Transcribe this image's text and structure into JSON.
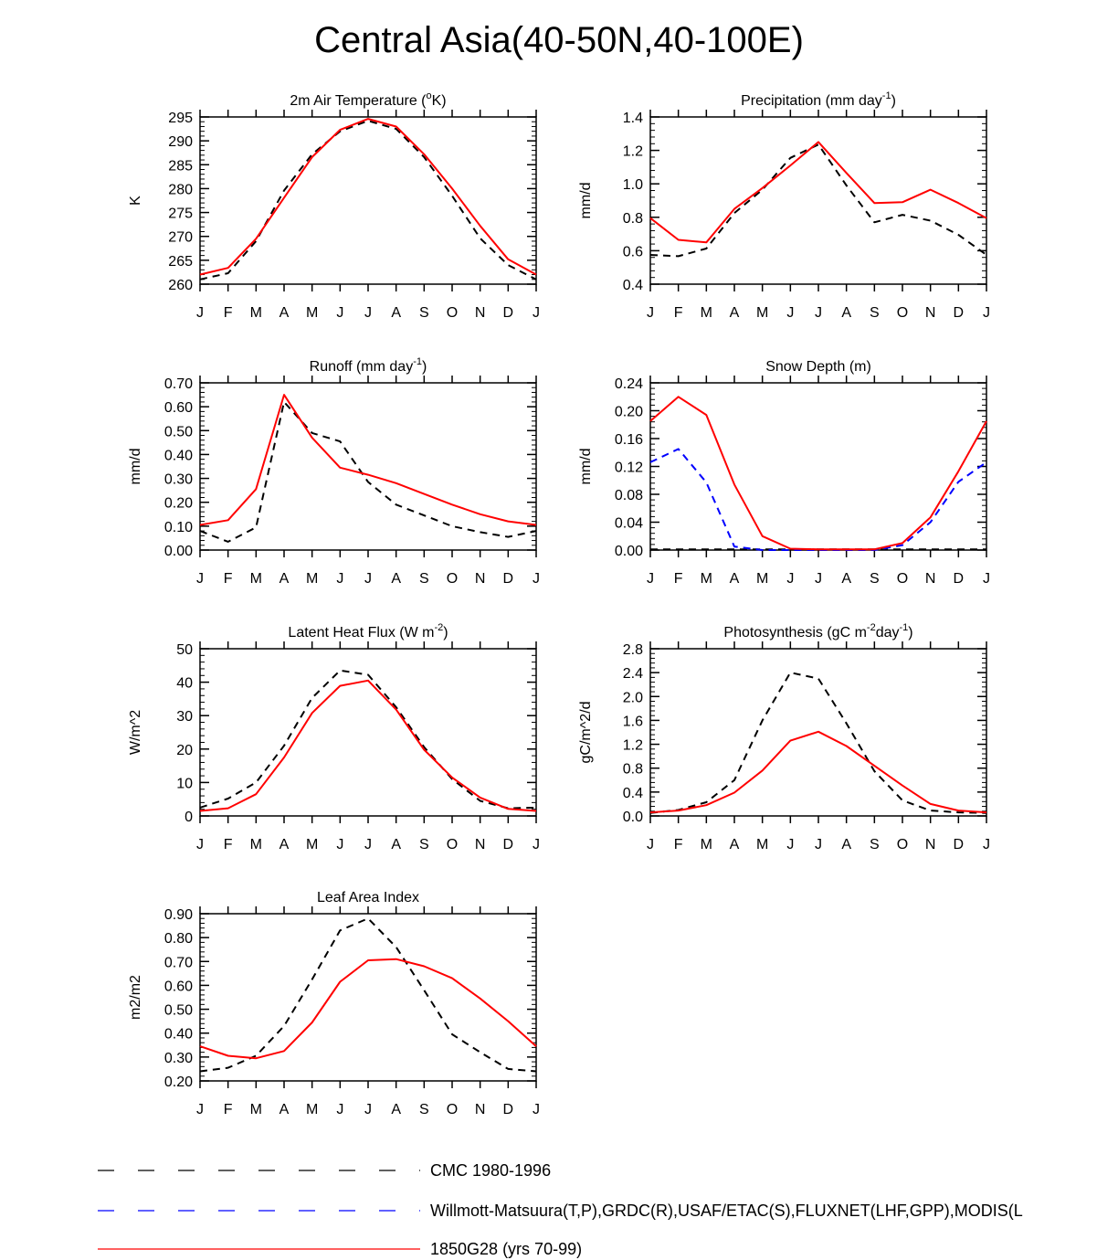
{
  "title": "Central Asia(40-50N,40-100E)",
  "months": [
    "J",
    "F",
    "M",
    "A",
    "M",
    "J",
    "J",
    "A",
    "S",
    "O",
    "N",
    "D",
    "J"
  ],
  "colors": {
    "cmc": "#000000",
    "obs": "#0000ff",
    "model": "#ff0000"
  },
  "legend": [
    {
      "label": "CMC 1980-1996",
      "style": "dash-black"
    },
    {
      "label": "Willmott-Matsuura(T,P),GRDC(R),USAF/ETAC(S),FLUXNET(LHF,GPP),MODIS(L",
      "style": "dash-blue"
    },
    {
      "label": "1850G28 (yrs 70-99)",
      "style": "solid-red"
    }
  ],
  "chart_data": [
    {
      "type": "line",
      "title": "2m Air Temperature (°K)",
      "title_parts": [
        "2m Air Temperature (",
        "o",
        "K)"
      ],
      "ylabel": "K",
      "ylim": [
        260,
        295
      ],
      "yticks": [
        "295",
        "290",
        "285",
        "280",
        "275",
        "270",
        "265",
        "260"
      ],
      "ytick_values": [
        295,
        290,
        285,
        280,
        275,
        270,
        265,
        260
      ],
      "minor_step": 1,
      "series": [
        {
          "name": "CMC 1980-1996",
          "style": "dash-black",
          "values": [
            261.0,
            262.3,
            269.0,
            279.6,
            287.2,
            292.0,
            294.2,
            292.5,
            286.6,
            278.5,
            269.6,
            264.0,
            261.0
          ]
        },
        {
          "name": "1850G28 (yrs 70-99)",
          "style": "solid-red",
          "values": [
            262.0,
            263.4,
            269.5,
            278.1,
            286.6,
            292.3,
            294.6,
            293.0,
            287.2,
            280.0,
            272.2,
            265.2,
            262.0
          ]
        }
      ]
    },
    {
      "type": "line",
      "title": "Precipitation (mm day-1)",
      "title_parts": [
        "Precipitation (mm day",
        "-1",
        ")"
      ],
      "ylabel": "mm/d",
      "ylim": [
        0.4,
        1.4
      ],
      "yticks": [
        "1.4",
        "1.2",
        "1.0",
        "0.8",
        "0.6",
        "0.4"
      ],
      "ytick_values": [
        1.4,
        1.2,
        1.0,
        0.8,
        0.6,
        0.4
      ],
      "minor_step": 0.04,
      "series": [
        {
          "name": "CMC 1980-1996",
          "style": "dash-black",
          "values": [
            0.575,
            0.567,
            0.613,
            0.825,
            0.965,
            1.155,
            1.235,
            0.99,
            0.77,
            0.815,
            0.78,
            0.695,
            0.575
          ]
        },
        {
          "name": "1850G28 (yrs 70-99)",
          "style": "solid-red",
          "values": [
            0.795,
            0.665,
            0.65,
            0.85,
            0.975,
            1.11,
            1.25,
            1.065,
            0.885,
            0.89,
            0.965,
            0.885,
            0.795
          ]
        }
      ]
    },
    {
      "type": "line",
      "title": "Runoff (mm day-1)",
      "title_parts": [
        "Runoff (mm day",
        "-1",
        ")"
      ],
      "ylabel": "mm/d",
      "ylim": [
        0.0,
        0.7
      ],
      "yticks": [
        "0.70",
        "0.60",
        "0.50",
        "0.40",
        "0.30",
        "0.20",
        "0.10",
        "0.00"
      ],
      "ytick_values": [
        0.7,
        0.6,
        0.5,
        0.4,
        0.3,
        0.2,
        0.1,
        0.0
      ],
      "minor_step": 0.02,
      "series": [
        {
          "name": "CMC 1980-1996",
          "style": "dash-black",
          "values": [
            0.08,
            0.035,
            0.095,
            0.62,
            0.49,
            0.455,
            0.285,
            0.19,
            0.145,
            0.1,
            0.075,
            0.055,
            0.08
          ]
        },
        {
          "name": "1850G28 (yrs 70-99)",
          "style": "solid-red",
          "values": [
            0.105,
            0.125,
            0.255,
            0.65,
            0.47,
            0.345,
            0.315,
            0.28,
            0.235,
            0.19,
            0.15,
            0.12,
            0.105
          ]
        }
      ]
    },
    {
      "type": "line",
      "title": "Snow Depth (m)",
      "title_parts": [
        "Snow Depth (m)"
      ],
      "ylabel": "mm/d",
      "ylim": [
        0.0,
        0.24
      ],
      "yticks": [
        "0.24",
        "0.20",
        "0.16",
        "0.12",
        "0.08",
        "0.04",
        "0.00"
      ],
      "ytick_values": [
        0.24,
        0.2,
        0.16,
        0.12,
        0.08,
        0.04,
        0.0
      ],
      "minor_step": 0.008,
      "series": [
        {
          "name": "CMC 1980-1996",
          "style": "dash-black",
          "values": [
            0.001,
            0.001,
            0.001,
            0.001,
            0.001,
            0.001,
            0.001,
            0.001,
            0.001,
            0.001,
            0.001,
            0.001,
            0.001
          ]
        },
        {
          "name": "Willmott-Matsuura(T,P),GRDC(R),USAF/ETAC(S),FLUXNET(LHF,GPP),MODIS(L",
          "style": "dash-blue",
          "values": [
            0.126,
            0.145,
            0.097,
            0.005,
            0.0,
            0.0,
            0.0,
            0.0,
            0.0,
            0.007,
            0.04,
            0.098,
            0.126
          ]
        },
        {
          "name": "1850G28 (yrs 70-99)",
          "style": "solid-red",
          "values": [
            0.185,
            0.22,
            0.194,
            0.094,
            0.02,
            0.002,
            0.001,
            0.001,
            0.001,
            0.01,
            0.047,
            0.113,
            0.185
          ]
        }
      ]
    },
    {
      "type": "line",
      "title": "Latent Heat Flux (W m-2)",
      "title_parts": [
        "Latent Heat Flux (W m",
        "-2",
        ")"
      ],
      "ylabel": "W/m^2",
      "ylim": [
        0,
        50
      ],
      "yticks": [
        "50",
        "40",
        "30",
        "20",
        "10",
        "0"
      ],
      "ytick_values": [
        50,
        40,
        30,
        20,
        10,
        0
      ],
      "minor_step": 2,
      "series": [
        {
          "name": "CMC 1980-1996",
          "style": "dash-black",
          "values": [
            2.5,
            5.2,
            10.0,
            21.0,
            35.3,
            43.5,
            42.2,
            32.5,
            20.6,
            11.0,
            4.5,
            2.3,
            2.5
          ]
        },
        {
          "name": "1850G28 (yrs 70-99)",
          "style": "solid-red",
          "values": [
            1.5,
            2.3,
            6.5,
            17.5,
            30.8,
            38.9,
            40.5,
            31.8,
            19.8,
            11.5,
            5.5,
            2.1,
            1.5
          ]
        }
      ]
    },
    {
      "type": "line",
      "title": "Photosynthesis (gC m-2day-1)",
      "title_parts": [
        "Photosynthesis (gC m",
        "-2",
        "day",
        "-1",
        ")"
      ],
      "ylabel": "gC/m^2/d",
      "ylim": [
        0.0,
        2.8
      ],
      "yticks": [
        "2.8",
        "2.4",
        "2.0",
        "1.6",
        "1.2",
        "0.8",
        "0.4",
        "0.0"
      ],
      "ytick_values": [
        2.8,
        2.4,
        2.0,
        1.6,
        1.2,
        0.8,
        0.4,
        0.0
      ],
      "minor_step": 0.08,
      "series": [
        {
          "name": "CMC 1980-1996",
          "style": "dash-black",
          "values": [
            0.05,
            0.1,
            0.23,
            0.6,
            1.6,
            2.4,
            2.3,
            1.55,
            0.75,
            0.26,
            0.09,
            0.06,
            0.05
          ]
        },
        {
          "name": "1850G28 (yrs 70-99)",
          "style": "solid-red",
          "values": [
            0.06,
            0.09,
            0.18,
            0.39,
            0.76,
            1.26,
            1.41,
            1.17,
            0.84,
            0.51,
            0.2,
            0.09,
            0.06
          ]
        }
      ]
    },
    {
      "type": "line",
      "title": "Leaf Area Index",
      "title_parts": [
        "Leaf Area Index"
      ],
      "ylabel": "m2/m2",
      "ylim": [
        0.2,
        0.9
      ],
      "yticks": [
        "0.90",
        "0.80",
        "0.70",
        "0.60",
        "0.50",
        "0.40",
        "0.30",
        "0.20"
      ],
      "ytick_values": [
        0.9,
        0.8,
        0.7,
        0.6,
        0.5,
        0.4,
        0.3,
        0.2
      ],
      "minor_step": 0.02,
      "series": [
        {
          "name": "CMC 1980-1996",
          "style": "dash-black",
          "values": [
            0.24,
            0.255,
            0.305,
            0.43,
            0.625,
            0.83,
            0.88,
            0.76,
            0.58,
            0.395,
            0.32,
            0.25,
            0.24
          ]
        },
        {
          "name": "1850G28 (yrs 70-99)",
          "style": "solid-red",
          "values": [
            0.345,
            0.305,
            0.295,
            0.325,
            0.445,
            0.615,
            0.705,
            0.71,
            0.68,
            0.63,
            0.545,
            0.45,
            0.345
          ]
        }
      ]
    }
  ]
}
